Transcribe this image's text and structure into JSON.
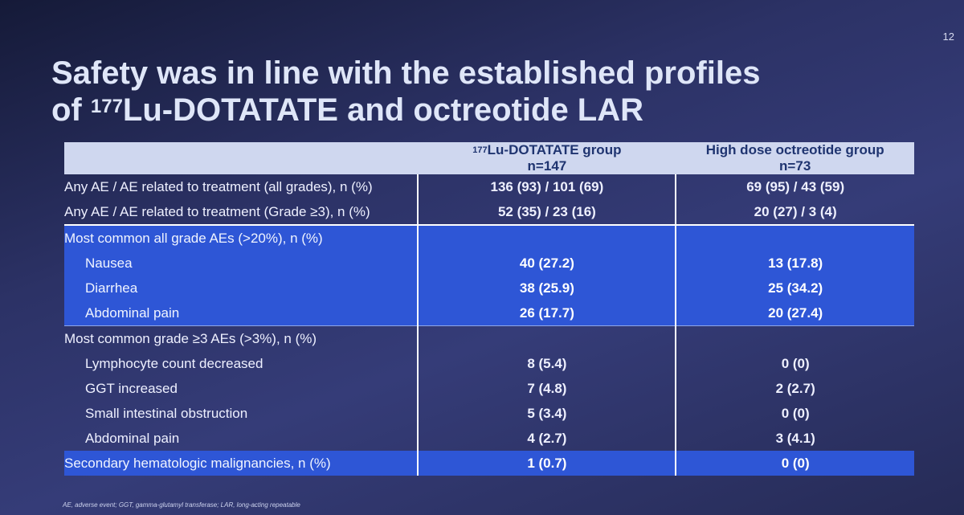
{
  "slide_number": "12",
  "title": {
    "line1": "Safety was in line with the established profiles",
    "line2_prefix": "of ",
    "line2_sup": "177",
    "line2_rest": "Lu-DOTATATE and octreotide LAR"
  },
  "table": {
    "headers": {
      "col1": "",
      "col2_sup": "177",
      "col2_name": "Lu-DOTATATE group",
      "col2_n": "n=147",
      "col3_name": "High dose octreotide group",
      "col3_n": "n=73"
    },
    "rows": [
      {
        "label": "Any AE / AE related to treatment (all grades), n (%)",
        "lu": "136 (93) / 101 (69)",
        "oct": "69 (95) / 43 (59)"
      },
      {
        "label": "Any AE / AE related to treatment (Grade ≥3), n (%)",
        "lu": "52 (35) / 23 (16)",
        "oct": "20 (27) / 3 (4)"
      },
      {
        "label": "Most common all grade AEs (>20%), n (%)",
        "lu": "",
        "oct": ""
      },
      {
        "label": "Nausea",
        "lu": "40 (27.2)",
        "oct": "13 (17.8)"
      },
      {
        "label": "Diarrhea",
        "lu": "38 (25.9)",
        "oct": "25 (34.2)"
      },
      {
        "label": "Abdominal pain",
        "lu": "26 (17.7)",
        "oct": "20 (27.4)"
      },
      {
        "label": "Most common grade ≥3 AEs (>3%), n (%)",
        "lu": "",
        "oct": ""
      },
      {
        "label": "Lymphocyte count decreased",
        "lu": "8 (5.4)",
        "oct": "0 (0)"
      },
      {
        "label": "GGT increased",
        "lu": "7 (4.8)",
        "oct": "2 (2.7)"
      },
      {
        "label": "Small intestinal obstruction",
        "lu": "5 (3.4)",
        "oct": "0 (0)"
      },
      {
        "label": "Abdominal pain",
        "lu": "4 (2.7)",
        "oct": "3 (4.1)"
      },
      {
        "label": "Secondary hematologic malignancies, n (%)",
        "lu": "1 (0.7)",
        "oct": "0 (0)"
      }
    ]
  },
  "footer": "AE, adverse event; GGT, gamma-glutamyl transferase; LAR, long-acting repeatable",
  "colors": {
    "background": "#2c3266",
    "header_fill": "#cfd7ef",
    "header_text": "#1f3470",
    "highlight_blue": "#2e56d6"
  }
}
